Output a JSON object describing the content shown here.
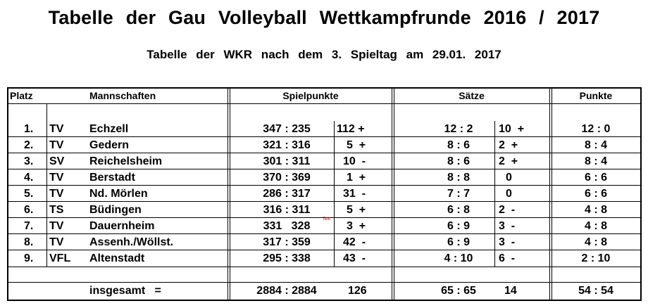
{
  "title": "Tabelle der Gau Volleyball Wettkampfrunde 2016 / 2017",
  "subtitle": "Tabelle der   WKR   nach dem  3.  Spieltag   am    29.01. 2017",
  "headers": {
    "platz": "Platz",
    "mannschaften": "Mannschaften",
    "spielpunkte": "Spielpunkte",
    "saetze": "Sätze",
    "punkte": "Punkte"
  },
  "rows": [
    {
      "platz": "1.",
      "verein": "TV",
      "name": "Echzell",
      "spielpunkte": "347 : 235",
      "sp_diff": "112 +",
      "saetze": "12 : 2",
      "s_diff": "10  +",
      "punkte": "12 : 0"
    },
    {
      "platz": "2.",
      "verein": "TV",
      "name": "Gedern",
      "spielpunkte": "321 : 316",
      "sp_diff": "5  +",
      "saetze": "8 : 6",
      "s_diff": "2  +",
      "punkte": "8 : 4"
    },
    {
      "platz": "3.",
      "verein": "SV",
      "name": "Reichelsheim",
      "spielpunkte": "301 : 311",
      "sp_diff": "10  -",
      "saetze": "8 : 6",
      "s_diff": "2  +",
      "punkte": "8 : 4"
    },
    {
      "platz": "4.",
      "verein": "TV",
      "name": "Berstadt",
      "spielpunkte": "370 : 369",
      "sp_diff": "1  +",
      "saetze": "8 : 8",
      "s_diff": "0",
      "punkte": "6 : 6"
    },
    {
      "platz": "5.",
      "verein": "TV",
      "name": "Nd. Mörlen",
      "spielpunkte": "286 : 317",
      "sp_diff": "31  -",
      "saetze": "7 : 7",
      "s_diff": "0",
      "punkte": "6 : 6"
    },
    {
      "platz": "6.",
      "verein": "TS",
      "name": "Büdingen",
      "spielpunkte": "316 : 311",
      "sp_diff": "5  +",
      "saetze": "6 : 8",
      "s_diff": "2  -",
      "punkte": "4 : 8"
    },
    {
      "platz": "7.",
      "verein": "TV",
      "name": "Dauernheim",
      "spielpunkte": "331   328",
      "sp_diff": "3  +",
      "saetze": "6 : 9",
      "s_diff": "3  -",
      "punkte": "4 : 8"
    },
    {
      "platz": "8.",
      "verein": "TV",
      "name": "Assenh./Wöllst.",
      "spielpunkte": "317 : 359",
      "sp_diff": "42  -",
      "saetze": "6 : 9",
      "s_diff": "3  -",
      "punkte": "4 : 8"
    },
    {
      "platz": "9.",
      "verein": "VFL",
      "name": "Altenstadt",
      "spielpunkte": "295 : 338",
      "sp_diff": "43  -",
      "saetze": "4 : 10",
      "s_diff": "6  -",
      "punkte": "2 : 10"
    }
  ],
  "totals": {
    "label": "insgesamt   =",
    "spielpunkte": "2884 : 2884",
    "sp_diff": "126",
    "saetze": "65 : 65",
    "s_diff": "14",
    "punkte": "54 : 54"
  },
  "marker_text": "Text",
  "line_color": "#000000",
  "marker_color": "#d80000"
}
